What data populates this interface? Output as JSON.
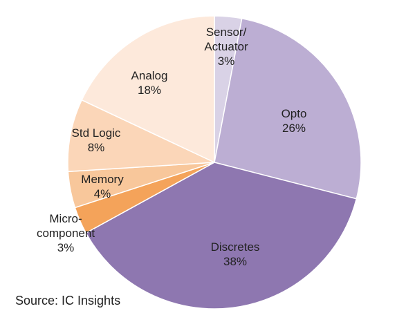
{
  "chart_data": {
    "type": "pie",
    "categories": [
      "Sensor/ Actuator",
      "Opto",
      "Discretes",
      "Micro- component",
      "Memory",
      "Std Logic",
      "Analog"
    ],
    "values": [
      3,
      26,
      38,
      3,
      4,
      8,
      18
    ],
    "value_labels": [
      "3%",
      "26%",
      "38%",
      "3%",
      "4%",
      "8%",
      "18%"
    ],
    "label_lines": [
      [
        "Sensor/",
        "Actuator"
      ],
      [
        "Opto"
      ],
      [
        "Discretes"
      ],
      [
        "Micro-",
        "component"
      ],
      [
        "Memory"
      ],
      [
        "Std Logic"
      ],
      [
        "Analog"
      ]
    ],
    "colors": [
      "#d9d2e6",
      "#bcaed3",
      "#8e77b0",
      "#f4a35a",
      "#f8c79b",
      "#fbd6b8",
      "#fde9db"
    ],
    "start_angle_deg": 0,
    "direction": "clockwise",
    "legend": "none"
  },
  "source": "Source:  IC Insights"
}
